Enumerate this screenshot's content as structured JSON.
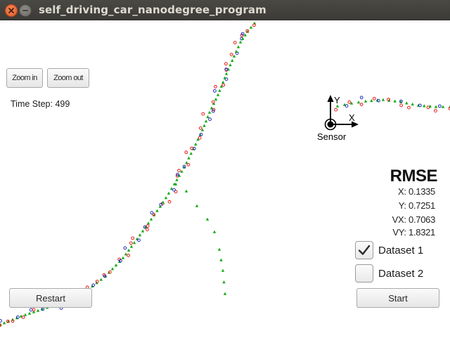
{
  "window": {
    "title": "self_driving_car_nanodegree_program"
  },
  "controls": {
    "zoom_in_label": "Zoom in",
    "zoom_out_label": "Zoom out",
    "time_step_text": "Time Step: 499",
    "restart_label": "Restart",
    "start_label": "Start"
  },
  "sensor": {
    "label": "Sensor",
    "axis_y_label": "Y",
    "axis_x_label": "X"
  },
  "rmse": {
    "title": "RMSE",
    "x": "X: 0.1335",
    "y": "Y: 0.7251",
    "vx": "VX: 0.7063",
    "vy": "VY: 1.8321"
  },
  "datasets": [
    {
      "label": "Dataset 1",
      "checked": true
    },
    {
      "label": "Dataset 2",
      "checked": false
    }
  ],
  "colors": {
    "ground_truth": "#11aa11",
    "lidar": "#e81a1a",
    "radar": "#1f2fbf",
    "estimate": "#11aa11",
    "titlebar_text": "#dfdbd2"
  }
}
